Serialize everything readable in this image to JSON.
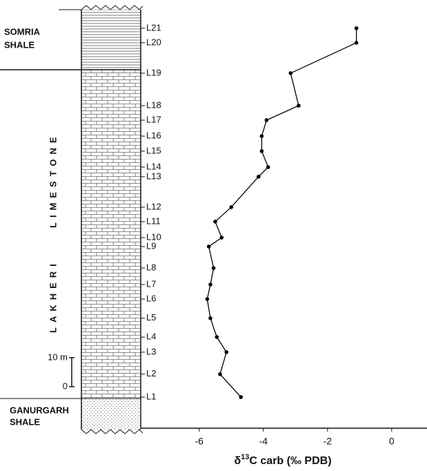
{
  "chart_data": {
    "type": "line",
    "formations": [
      {
        "lines": [
          "SOMRIA",
          "SHALE"
        ]
      },
      {
        "lines": [
          "LAKHERI",
          "LIMESTONE"
        ]
      },
      {
        "lines": [
          "GANURGARH",
          "SHALE"
        ]
      }
    ],
    "xlabel": {
      "symbol": "δ",
      "superscript": "13",
      "text": "C carb (‰ PDB)"
    },
    "samples": [
      "L1",
      "L2",
      "L3",
      "L4",
      "L5",
      "L6",
      "L7",
      "L8",
      "L9",
      "L10",
      "L11",
      "L12",
      "L13",
      "L14",
      "L15",
      "L16",
      "L17",
      "L18",
      "L19",
      "L20",
      "L21"
    ],
    "x": [
      -4.7,
      -5.35,
      -5.15,
      -5.45,
      -5.65,
      -5.75,
      -5.65,
      -5.55,
      -5.7,
      -5.3,
      -5.5,
      -5.0,
      -4.15,
      -3.85,
      -4.05,
      -4.05,
      -3.9,
      -2.9,
      -3.15,
      -1.1,
      -1.1
    ],
    "values": [
      -3.6,
      4.3,
      11.9,
      17.1,
      23.6,
      30.2,
      35.2,
      40.9,
      48.3,
      51.4,
      56.9,
      61.9,
      72.4,
      75.7,
      81.2,
      86.4,
      91.9,
      96.9,
      108.1,
      118.6,
      123.6
    ],
    "color": "#000000",
    "xlim": [
      -7.8,
      1.1
    ],
    "xticks": [
      -6,
      -4,
      -2,
      0
    ],
    "ylim": [
      -14.8,
      130
    ],
    "yticks": [
      0,
      {
        "value": 10,
        "label": "10 m"
      }
    ]
  }
}
